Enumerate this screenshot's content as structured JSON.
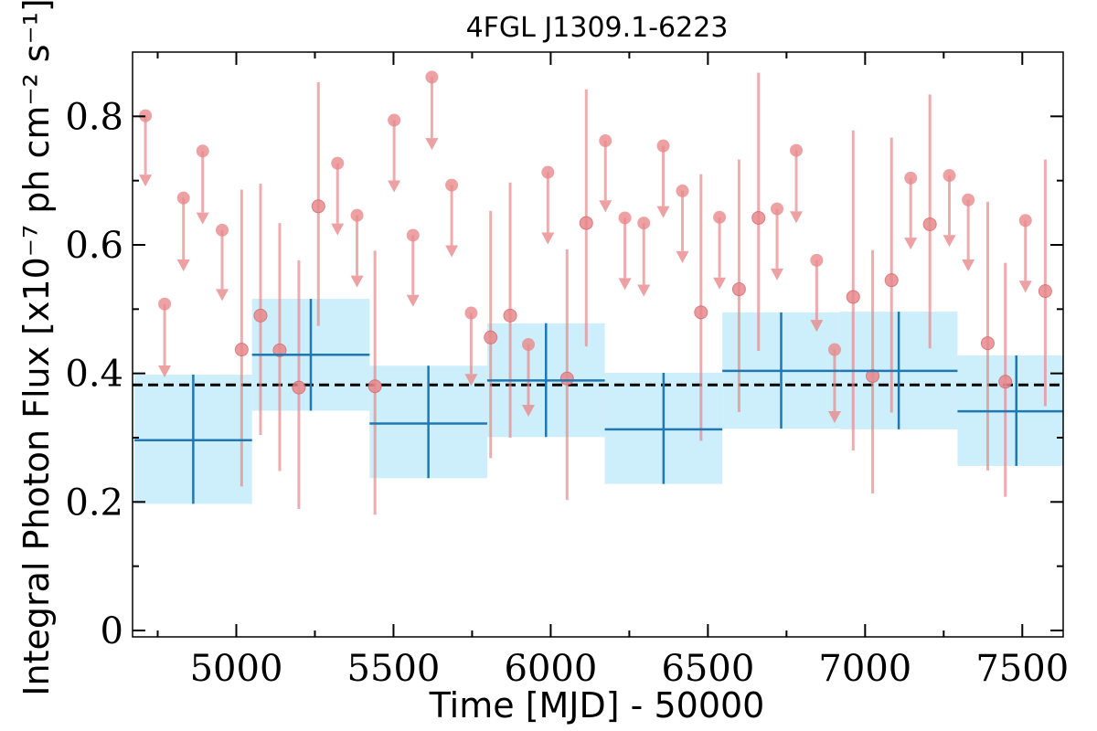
{
  "chart_data": {
    "type": "scatter",
    "title": "4FGL J1309.1-6223",
    "xlabel": "Time [MJD] - 50000",
    "ylabel": "Integral Photon Flux [x10⁻⁷ ph cm⁻² s⁻¹]",
    "xlim": [
      4670,
      7630
    ],
    "ylim": [
      -0.01,
      0.9
    ],
    "x_ticks": [
      5000,
      5500,
      6000,
      6500,
      7000,
      7500
    ],
    "y_ticks": [
      0,
      0.2,
      0.4,
      0.6,
      0.8
    ],
    "x_tick_labels": [
      "5000",
      "5500",
      "6000",
      "6500",
      "7000",
      "7500"
    ],
    "y_tick_labels": [
      "0",
      "0.2",
      "0.4",
      "0.6",
      "0.8"
    ],
    "average_flux": 0.382,
    "colors": {
      "long_bins": "#1f77b4",
      "long_bins_band": "#cdeefb",
      "short_bins": "#e8898c",
      "average_line": "#000000"
    },
    "long_bins": [
      {
        "x_start": 4676,
        "x_end": 5050,
        "flux": 0.296,
        "err_low": 0.197,
        "err_high": 0.398
      },
      {
        "x_start": 5050,
        "x_end": 5424,
        "flux": 0.429,
        "err_low": 0.342,
        "err_high": 0.516
      },
      {
        "x_start": 5424,
        "x_end": 5798,
        "flux": 0.322,
        "err_low": 0.237,
        "err_high": 0.412
      },
      {
        "x_start": 5798,
        "x_end": 6172,
        "flux": 0.389,
        "err_low": 0.301,
        "err_high": 0.478
      },
      {
        "x_start": 6172,
        "x_end": 6546,
        "flux": 0.313,
        "err_low": 0.228,
        "err_high": 0.401
      },
      {
        "x_start": 6546,
        "x_end": 6920,
        "flux": 0.404,
        "err_low": 0.314,
        "err_high": 0.495
      },
      {
        "x_start": 6920,
        "x_end": 7294,
        "flux": 0.404,
        "err_low": 0.313,
        "err_high": 0.496
      },
      {
        "x_start": 7294,
        "x_end": 7668,
        "flux": 0.341,
        "err_low": 0.256,
        "err_high": 0.428
      }
    ],
    "short_bins_detections": [
      {
        "x": 5017,
        "flux": 0.437,
        "err_low": 0.224,
        "err_high": 0.686
      },
      {
        "x": 5077,
        "flux": 0.49,
        "err_low": 0.304,
        "err_high": 0.695
      },
      {
        "x": 5138,
        "flux": 0.436,
        "err_low": 0.248,
        "err_high": 0.634
      },
      {
        "x": 5199,
        "flux": 0.378,
        "err_low": 0.189,
        "err_high": 0.576
      },
      {
        "x": 5261,
        "flux": 0.66,
        "err_low": 0.474,
        "err_high": 0.853
      },
      {
        "x": 5441,
        "flux": 0.38,
        "err_low": 0.18,
        "err_high": 0.591
      },
      {
        "x": 5809,
        "flux": 0.456,
        "err_low": 0.268,
        "err_high": 0.653
      },
      {
        "x": 5871,
        "flux": 0.49,
        "err_low": 0.3,
        "err_high": 0.697
      },
      {
        "x": 6052,
        "flux": 0.392,
        "err_low": 0.203,
        "err_high": 0.593
      },
      {
        "x": 6113,
        "flux": 0.634,
        "err_low": 0.442,
        "err_high": 0.842
      },
      {
        "x": 6478,
        "flux": 0.495,
        "err_low": 0.295,
        "err_high": 0.71
      },
      {
        "x": 6599,
        "flux": 0.531,
        "err_low": 0.34,
        "err_high": 0.733
      },
      {
        "x": 6661,
        "flux": 0.642,
        "err_low": 0.435,
        "err_high": 0.868
      },
      {
        "x": 6962,
        "flux": 0.519,
        "err_low": 0.28,
        "err_high": 0.778
      },
      {
        "x": 7024,
        "flux": 0.396,
        "err_low": 0.213,
        "err_high": 0.592
      },
      {
        "x": 7084,
        "flux": 0.545,
        "err_low": 0.339,
        "err_high": 0.767
      },
      {
        "x": 7206,
        "flux": 0.632,
        "err_low": 0.439,
        "err_high": 0.834
      },
      {
        "x": 7390,
        "flux": 0.447,
        "err_low": 0.249,
        "err_high": 0.667
      },
      {
        "x": 7446,
        "flux": 0.387,
        "err_low": 0.208,
        "err_high": 0.572
      },
      {
        "x": 7573,
        "flux": 0.528,
        "err_low": 0.349,
        "err_high": 0.733
      }
    ],
    "short_bins_upper_limits": [
      {
        "x": 4711,
        "flux": 0.801,
        "arrow_to": 0.695
      },
      {
        "x": 4772,
        "flux": 0.508,
        "arrow_to": 0.398
      },
      {
        "x": 4832,
        "flux": 0.673,
        "arrow_to": 0.563
      },
      {
        "x": 4893,
        "flux": 0.746,
        "arrow_to": 0.636
      },
      {
        "x": 4955,
        "flux": 0.623,
        "arrow_to": 0.517
      },
      {
        "x": 5322,
        "flux": 0.727,
        "arrow_to": 0.619
      },
      {
        "x": 5384,
        "flux": 0.646,
        "arrow_to": 0.538
      },
      {
        "x": 5502,
        "flux": 0.794,
        "arrow_to": 0.686
      },
      {
        "x": 5562,
        "flux": 0.615,
        "arrow_to": 0.508
      },
      {
        "x": 5622,
        "flux": 0.861,
        "arrow_to": 0.752
      },
      {
        "x": 5685,
        "flux": 0.693,
        "arrow_to": 0.585
      },
      {
        "x": 5747,
        "flux": 0.494,
        "arrow_to": 0.385
      },
      {
        "x": 5929,
        "flux": 0.445,
        "arrow_to": 0.337
      },
      {
        "x": 5991,
        "flux": 0.713,
        "arrow_to": 0.605
      },
      {
        "x": 6174,
        "flux": 0.762,
        "arrow_to": 0.655
      },
      {
        "x": 6236,
        "flux": 0.642,
        "arrow_to": 0.534
      },
      {
        "x": 6296,
        "flux": 0.634,
        "arrow_to": 0.524
      },
      {
        "x": 6358,
        "flux": 0.754,
        "arrow_to": 0.646
      },
      {
        "x": 6419,
        "flux": 0.684,
        "arrow_to": 0.576
      },
      {
        "x": 6537,
        "flux": 0.643,
        "arrow_to": 0.535
      },
      {
        "x": 6720,
        "flux": 0.656,
        "arrow_to": 0.549
      },
      {
        "x": 6781,
        "flux": 0.747,
        "arrow_to": 0.638
      },
      {
        "x": 6846,
        "flux": 0.576,
        "arrow_to": 0.469
      },
      {
        "x": 6903,
        "flux": 0.437,
        "arrow_to": 0.327
      },
      {
        "x": 7145,
        "flux": 0.704,
        "arrow_to": 0.597
      },
      {
        "x": 7268,
        "flux": 0.708,
        "arrow_to": 0.601
      },
      {
        "x": 7328,
        "flux": 0.67,
        "arrow_to": 0.563
      },
      {
        "x": 7510,
        "flux": 0.638,
        "arrow_to": 0.53
      }
    ]
  }
}
